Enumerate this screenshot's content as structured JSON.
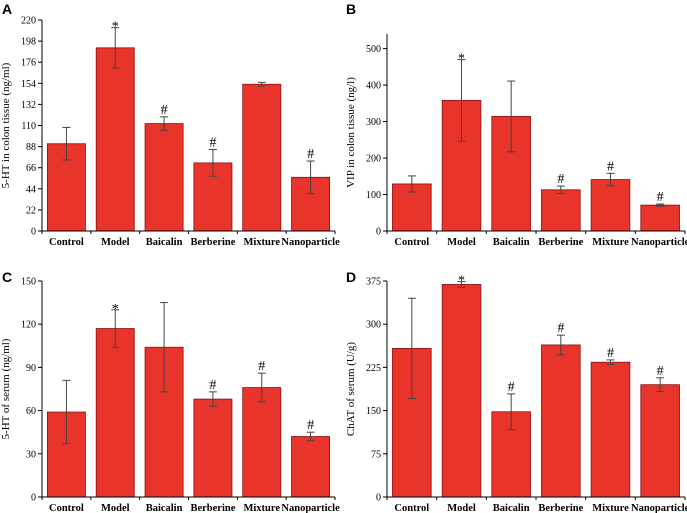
{
  "figure": {
    "background": "#ffffff",
    "bar_color": "#e8342a"
  },
  "chart_data": [
    {
      "type": "bar",
      "panel": "A",
      "ylabel": "5-HT in colon tissue (ng/ml)",
      "ylim": [
        0,
        220
      ],
      "yticks": [
        0,
        22,
        44,
        66,
        88,
        110,
        132,
        154,
        176,
        198,
        220
      ],
      "categories": [
        "Control",
        "Model",
        "Baicalin",
        "Berberine",
        "Mixture",
        "Nanoparticle"
      ],
      "values": [
        91,
        191,
        112,
        71,
        153,
        56
      ],
      "errors": [
        17,
        21,
        7,
        14,
        2,
        17
      ],
      "annotations": [
        "",
        "*",
        "#",
        "#",
        "",
        "#"
      ]
    },
    {
      "type": "bar",
      "panel": "B",
      "ylabel": "VIP in colon tissue (ng/l)",
      "ylim": [
        0,
        540
      ],
      "yticks": [
        0,
        100,
        200,
        300,
        400,
        500
      ],
      "categories": [
        "Control",
        "Model",
        "Baicalin",
        "Berberine",
        "Mixture",
        "Nanoparticle"
      ],
      "values": [
        129,
        358,
        314,
        113,
        141,
        71
      ],
      "errors": [
        22,
        112,
        97,
        10,
        17,
        3
      ],
      "annotations": [
        "",
        "*",
        "",
        "#",
        "#",
        "#"
      ]
    },
    {
      "type": "bar",
      "panel": "C",
      "ylabel": "5-HT of serum (ng/ml)",
      "ylim": [
        0,
        150
      ],
      "yticks": [
        0,
        30,
        60,
        90,
        120,
        150
      ],
      "categories": [
        "Control",
        "Model",
        "Baicalin",
        "Berberine",
        "Mixture",
        "Nanoparticle"
      ],
      "values": [
        59,
        117,
        104,
        68,
        76,
        42
      ],
      "errors": [
        22,
        13,
        31,
        5,
        10,
        3
      ],
      "annotations": [
        "",
        "*",
        "",
        "#",
        "#",
        "#"
      ]
    },
    {
      "type": "bar",
      "panel": "D",
      "ylabel": "ChAT of serum (U/g)",
      "ylim": [
        0,
        375
      ],
      "yticks": [
        0,
        75,
        150,
        225,
        300,
        375
      ],
      "categories": [
        "Control",
        "Model",
        "Baicalin",
        "Berberine",
        "Mixture",
        "Nanoparticle"
      ],
      "values": [
        258,
        369,
        148,
        264,
        234,
        195
      ],
      "errors": [
        87,
        5,
        31,
        17,
        4,
        12
      ],
      "annotations": [
        "",
        "*",
        "#",
        "#",
        "#",
        "#"
      ]
    }
  ]
}
